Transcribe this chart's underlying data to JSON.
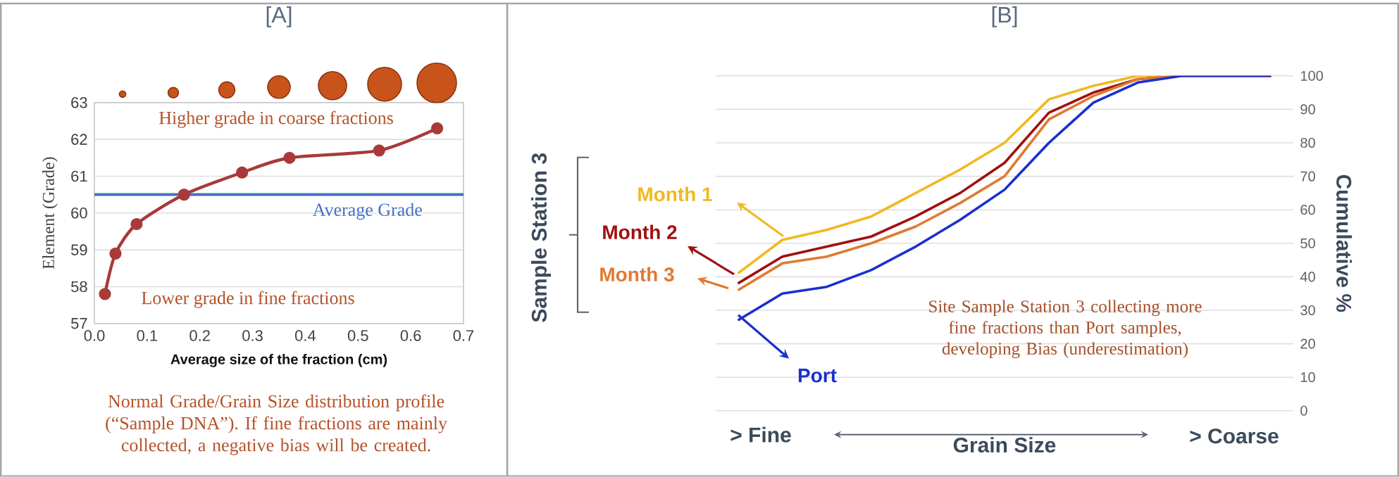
{
  "chart_data": [
    {
      "type": "line",
      "title": "[A]",
      "xlabel": "Average size of the fraction (cm)",
      "ylabel": "Element (Grade)",
      "x": [
        0.02,
        0.04,
        0.08,
        0.17,
        0.28,
        0.37,
        0.54,
        0.65
      ],
      "series": [
        {
          "color": "#a83a3a",
          "values": [
            57.8,
            58.9,
            59.7,
            60.5,
            61.1,
            61.5,
            61.7,
            62.3
          ]
        }
      ],
      "marker": "circle",
      "xlim": [
        0,
        0.7
      ],
      "ylim": [
        57,
        63
      ],
      "xticks": [
        {
          "value": 0,
          "label": "0.0"
        },
        0.1,
        0.2,
        0.3,
        0.4,
        0.5,
        0.6,
        0.7
      ],
      "yticks": [
        57,
        58,
        59,
        60,
        61,
        62,
        63
      ],
      "grid": "y",
      "ref_lines": [
        {
          "axis": "y",
          "value": 60.5,
          "label": "Average Grade",
          "color": "#4472c4"
        }
      ],
      "annotations": [
        "Higher grade in coarse fractions",
        "Lower grade in fine fractions",
        "Normal Grade/Grain Size distribution profile (“Sample DNA”). If fine fractions are mainly collected,  a negative bias will be created."
      ]
    },
    {
      "type": "line",
      "title": "[B]",
      "xlabel": "Grain Size",
      "ylabel": "Cumulative %",
      "categories": [
        null,
        null,
        null,
        null,
        null,
        null,
        null,
        null,
        null,
        null,
        null,
        null,
        null
      ],
      "series": [
        {
          "name": "Month 1",
          "color": "#f2b820",
          "values": [
            41,
            51,
            54,
            58,
            65,
            72,
            80,
            93,
            97,
            100,
            100,
            100,
            100
          ]
        },
        {
          "name": "Month 2",
          "color": "#a01010",
          "values": [
            38,
            46,
            49,
            52,
            58,
            65,
            74,
            89,
            95,
            99,
            100,
            100,
            100
          ]
        },
        {
          "name": "Month 3",
          "color": "#e07a30",
          "values": [
            36,
            44,
            46,
            50,
            55,
            62,
            70,
            87,
            94,
            99,
            100,
            100,
            100
          ]
        },
        {
          "name": "Port",
          "color": "#1a2fd0",
          "values": [
            27,
            35,
            37,
            42,
            49,
            57,
            66,
            80,
            92,
            98,
            100,
            100,
            100
          ]
        }
      ],
      "ylim": [
        0,
        100
      ],
      "yticks": [
        0,
        10,
        20,
        30,
        40,
        50,
        60,
        70,
        80,
        90,
        100
      ],
      "grid": "y",
      "legend": "left",
      "annotations": [
        "> Fine",
        "> Coarse",
        "Site Sample Station 3 collecting more fine fractions than Port samples, developing Bias (underestimation)",
        "Sample Station 3"
      ]
    }
  ]
}
